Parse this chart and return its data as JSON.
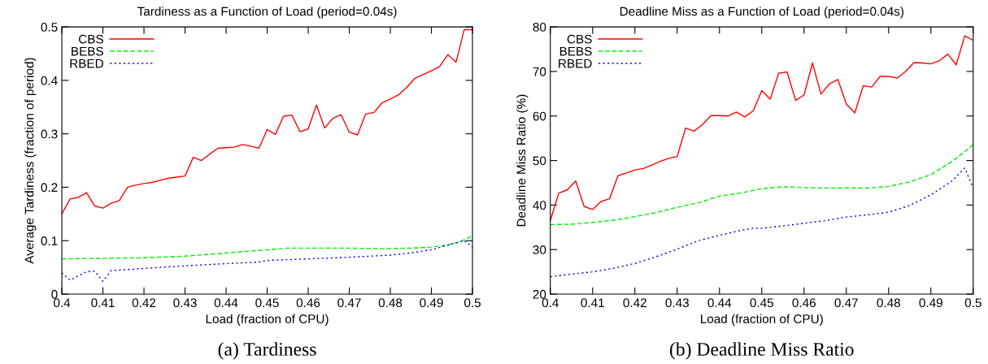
{
  "chart_data": [
    {
      "type": "line",
      "title": "Tardiness as a Function of Load (period=0.04s)",
      "xlabel": "Load (fraction of CPU)",
      "ylabel": "Average Tardiness (fraction of period)",
      "annotations": [
        "(a) Tardiness"
      ],
      "xlim": [
        0.4,
        0.5
      ],
      "ylim": [
        0,
        0.5
      ],
      "xticks": [
        0.4,
        0.41,
        0.42,
        0.43,
        0.44,
        0.45,
        0.46,
        0.47,
        0.48,
        0.49,
        0.5
      ],
      "yticks": [
        0,
        0.1,
        0.2,
        0.3,
        0.4,
        0.5
      ],
      "grid": false,
      "legend": "top left",
      "marker": "none",
      "series": [
        {
          "name": "CBS",
          "color": "#ff0000",
          "line_style": "solid",
          "x": [
            0.4,
            0.402,
            0.404,
            0.406,
            0.408,
            0.41,
            0.412,
            0.414,
            0.416,
            0.418,
            0.42,
            0.422,
            0.424,
            0.426,
            0.428,
            0.43,
            0.432,
            0.434,
            0.436,
            0.438,
            0.44,
            0.442,
            0.444,
            0.446,
            0.448,
            0.45,
            0.452,
            0.454,
            0.456,
            0.458,
            0.46,
            0.462,
            0.464,
            0.466,
            0.468,
            0.47,
            0.472,
            0.474,
            0.476,
            0.478,
            0.48,
            0.482,
            0.484,
            0.486,
            0.488,
            0.49,
            0.492,
            0.494,
            0.496,
            0.498,
            0.5
          ],
          "values": [
            0.15,
            0.178,
            0.181,
            0.19,
            0.165,
            0.161,
            0.17,
            0.175,
            0.2,
            0.204,
            0.207,
            0.209,
            0.213,
            0.217,
            0.219,
            0.221,
            0.256,
            0.25,
            0.262,
            0.273,
            0.274,
            0.275,
            0.28,
            0.277,
            0.273,
            0.308,
            0.299,
            0.333,
            0.335,
            0.304,
            0.309,
            0.354,
            0.311,
            0.329,
            0.336,
            0.303,
            0.298,
            0.337,
            0.34,
            0.358,
            0.365,
            0.373,
            0.387,
            0.404,
            0.411,
            0.418,
            0.426,
            0.448,
            0.434,
            0.495,
            0.495
          ]
        },
        {
          "name": "BEBS",
          "color": "#00ee00",
          "line_style": "dashed",
          "x": [
            0.4,
            0.41,
            0.42,
            0.43,
            0.44,
            0.45,
            0.455,
            0.46,
            0.47,
            0.478,
            0.485,
            0.49,
            0.494,
            0.497,
            0.5
          ],
          "values": [
            0.066,
            0.067,
            0.068,
            0.071,
            0.077,
            0.083,
            0.086,
            0.086,
            0.086,
            0.085,
            0.086,
            0.088,
            0.092,
            0.098,
            0.109
          ]
        },
        {
          "name": "RBED",
          "color": "#0000ff",
          "line_style": "dotted",
          "x": [
            0.4,
            0.402,
            0.404,
            0.406,
            0.408,
            0.41,
            0.412,
            0.42,
            0.43,
            0.44,
            0.448,
            0.45,
            0.46,
            0.47,
            0.48,
            0.485,
            0.49,
            0.495,
            0.498,
            0.5
          ],
          "values": [
            0.04,
            0.026,
            0.034,
            0.042,
            0.043,
            0.024,
            0.044,
            0.048,
            0.053,
            0.057,
            0.06,
            0.063,
            0.066,
            0.069,
            0.073,
            0.077,
            0.083,
            0.094,
            0.1,
            0.088
          ]
        }
      ]
    },
    {
      "type": "line",
      "title": "Deadline Miss as a Function of Load (period=0.04s)",
      "xlabel": "Load (fraction of CPU)",
      "ylabel": "Deadline Miss Ratio (%)",
      "annotations": [
        "(b) Deadline Miss Ratio"
      ],
      "xlim": [
        0.4,
        0.5
      ],
      "ylim": [
        20,
        80
      ],
      "xticks": [
        0.4,
        0.41,
        0.42,
        0.43,
        0.44,
        0.45,
        0.46,
        0.47,
        0.48,
        0.49,
        0.5
      ],
      "yticks": [
        20,
        30,
        40,
        50,
        60,
        70,
        80
      ],
      "grid": false,
      "legend": "top left",
      "marker": "none",
      "series": [
        {
          "name": "CBS",
          "color": "#ff0000",
          "line_style": "solid",
          "x": [
            0.4,
            0.402,
            0.404,
            0.406,
            0.408,
            0.41,
            0.412,
            0.414,
            0.416,
            0.418,
            0.42,
            0.422,
            0.424,
            0.426,
            0.428,
            0.43,
            0.432,
            0.434,
            0.436,
            0.438,
            0.44,
            0.442,
            0.444,
            0.446,
            0.448,
            0.45,
            0.452,
            0.454,
            0.456,
            0.458,
            0.46,
            0.462,
            0.464,
            0.466,
            0.468,
            0.47,
            0.472,
            0.474,
            0.476,
            0.478,
            0.48,
            0.482,
            0.484,
            0.486,
            0.488,
            0.49,
            0.492,
            0.494,
            0.496,
            0.498,
            0.5
          ],
          "values": [
            36.5,
            42.7,
            43.4,
            45.4,
            39.7,
            39.0,
            40.8,
            41.4,
            46.6,
            47.2,
            47.9,
            48.2,
            49.0,
            49.8,
            50.5,
            50.9,
            57.3,
            56.6,
            58.1,
            60.1,
            60.1,
            60.0,
            60.9,
            59.8,
            61.2,
            65.7,
            63.8,
            69.6,
            69.9,
            63.5,
            64.7,
            71.9,
            64.9,
            67.2,
            68.2,
            62.7,
            60.7,
            66.8,
            66.5,
            68.9,
            68.9,
            68.5,
            70.0,
            72.0,
            71.9,
            71.7,
            72.4,
            73.9,
            71.5,
            78.0,
            77.0
          ]
        },
        {
          "name": "BEBS",
          "color": "#00ee00",
          "line_style": "dashed",
          "x": [
            0.4,
            0.405,
            0.41,
            0.415,
            0.42,
            0.425,
            0.43,
            0.435,
            0.44,
            0.445,
            0.45,
            0.455,
            0.46,
            0.465,
            0.47,
            0.475,
            0.48,
            0.485,
            0.49,
            0.495,
            0.498,
            0.5
          ],
          "values": [
            35.6,
            35.7,
            36.1,
            36.6,
            37.4,
            38.3,
            39.5,
            40.5,
            42.0,
            42.7,
            43.7,
            44.1,
            43.9,
            43.8,
            43.9,
            43.8,
            44.2,
            45.2,
            46.8,
            49.8,
            52.0,
            53.6
          ]
        },
        {
          "name": "RBED",
          "color": "#0000ff",
          "line_style": "dotted",
          "x": [
            0.4,
            0.405,
            0.41,
            0.415,
            0.42,
            0.425,
            0.43,
            0.435,
            0.44,
            0.445,
            0.448,
            0.45,
            0.455,
            0.46,
            0.465,
            0.47,
            0.475,
            0.48,
            0.485,
            0.49,
            0.495,
            0.498,
            0.5
          ],
          "values": [
            23.9,
            24.5,
            25.0,
            25.8,
            26.9,
            28.4,
            30.1,
            32.0,
            33.2,
            34.3,
            34.8,
            34.8,
            35.3,
            35.9,
            36.5,
            37.3,
            37.8,
            38.4,
            39.9,
            42.3,
            45.4,
            48.3,
            43.8
          ]
        }
      ]
    }
  ]
}
